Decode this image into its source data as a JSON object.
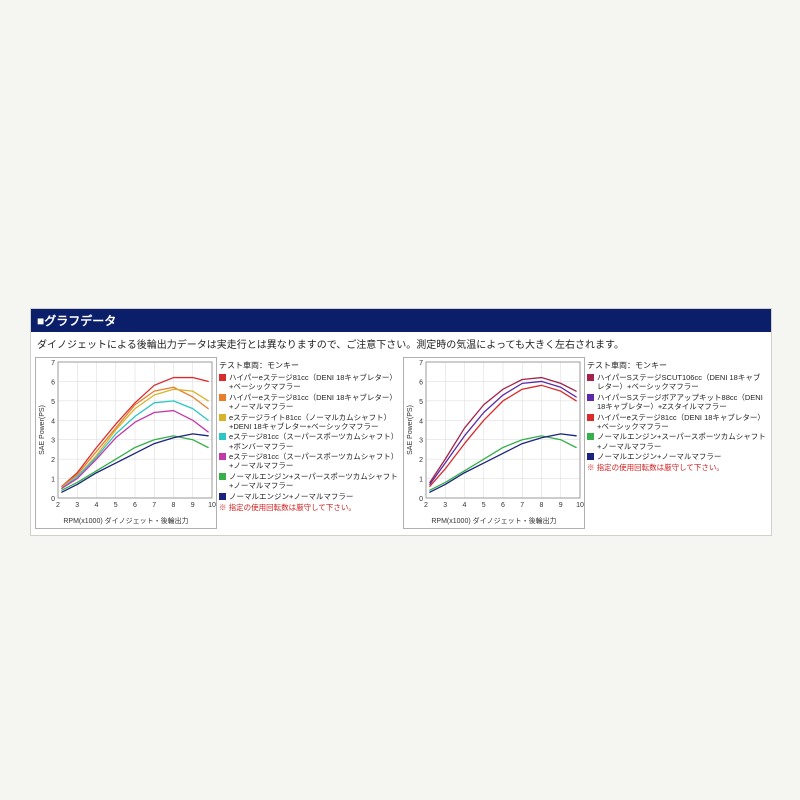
{
  "header": {
    "title": "■グラフデータ",
    "subtitle": "ダイノジェットによる後輪出力データは実走行とは異なりますので、ご注意下さい。測定時の気温によっても大きく左右されます。"
  },
  "charts": [
    {
      "type": "line",
      "background_color": "#ffffff",
      "grid_color": "#d8d8d8",
      "axis_color": "#888888",
      "xlim": [
        2,
        10
      ],
      "ylim": [
        0,
        7
      ],
      "xtick_step": 1,
      "ytick_step": 1,
      "x_label": "RPM(x1000) ダイノジェット・後輪出力",
      "y_label": "SAE Power(PS)",
      "title_fontsize": 7,
      "label_fontsize": 7,
      "line_width": 1.3,
      "legend_header": "テスト車両：モンキー",
      "legend_warn": "※ 指定の使用回転数は厳守して下さい。",
      "series": [
        {
          "color": "#d92b2b",
          "label": "ハイパーeステージ81cc（DENI 18キャブレター）+ベーシックマフラー",
          "x": [
            2.2,
            3,
            4,
            5,
            6,
            7,
            8,
            9,
            9.8
          ],
          "y": [
            0.6,
            1.3,
            2.6,
            3.8,
            4.9,
            5.8,
            6.2,
            6.2,
            6.0
          ]
        },
        {
          "color": "#e87e2a",
          "label": "ハイパーeステージ81cc（DENI 18キャブレター）+ノーマルマフラー",
          "x": [
            2.2,
            3,
            4,
            5,
            6,
            7,
            8,
            9,
            9.8
          ],
          "y": [
            0.6,
            1.2,
            2.4,
            3.6,
            4.8,
            5.5,
            5.7,
            5.2,
            4.6
          ]
        },
        {
          "color": "#d9b32b",
          "label": "eステージライト81cc（ノーマルカムシャフト）+DENI 18キャブレター+ベーシックマフラー",
          "x": [
            2.2,
            3,
            4,
            5,
            6,
            7,
            8,
            9,
            9.8
          ],
          "y": [
            0.5,
            1.1,
            2.2,
            3.5,
            4.6,
            5.3,
            5.6,
            5.5,
            5.0
          ]
        },
        {
          "color": "#2bc6c6",
          "label": "eステージ81cc（スーパースポーツカムシャフト）+ボンバーマフラー",
          "x": [
            2.2,
            3,
            4,
            5,
            6,
            7,
            8,
            9,
            9.8
          ],
          "y": [
            0.5,
            1.1,
            2.1,
            3.3,
            4.2,
            4.9,
            5.0,
            4.6,
            4.0
          ]
        },
        {
          "color": "#c23aa8",
          "label": "eステージ81cc（スーパースポーツカムシャフト）+ノーマルマフラー",
          "x": [
            2.2,
            3,
            4,
            5,
            6,
            7,
            8,
            9,
            9.8
          ],
          "y": [
            0.5,
            1.0,
            2.0,
            3.1,
            3.9,
            4.4,
            4.5,
            4.0,
            3.4
          ]
        },
        {
          "color": "#35b04a",
          "label": "ノーマルエンジン+スーパースポーツカムシャフト+ノーマルマフラー",
          "x": [
            2.2,
            3,
            4,
            5,
            6,
            7,
            8,
            9,
            9.8
          ],
          "y": [
            0.4,
            0.8,
            1.4,
            2.0,
            2.6,
            3.0,
            3.2,
            3.0,
            2.6
          ]
        },
        {
          "color": "#1a237e",
          "label": "ノーマルエンジン+ノーマルマフラー",
          "x": [
            2.2,
            3,
            4,
            5,
            6,
            7,
            8,
            9,
            9.8
          ],
          "y": [
            0.3,
            0.7,
            1.3,
            1.8,
            2.3,
            2.8,
            3.1,
            3.3,
            3.2
          ]
        }
      ]
    },
    {
      "type": "line",
      "background_color": "#ffffff",
      "grid_color": "#d8d8d8",
      "axis_color": "#888888",
      "xlim": [
        2,
        10
      ],
      "ylim": [
        0,
        7
      ],
      "xtick_step": 1,
      "ytick_step": 1,
      "x_label": "RPM(x1000) ダイノジェット・後輪出力",
      "y_label": "SAE Power(PS)",
      "title_fontsize": 7,
      "label_fontsize": 7,
      "line_width": 1.3,
      "legend_header": "テスト車両：モンキー",
      "legend_warn": "※ 指定の使用回転数は厳守して下さい。",
      "series": [
        {
          "color": "#a3234a",
          "label": "ハイパーSステージSCUT106cc（DENI 18キャブレター）+ベーシックマフラー",
          "x": [
            2.2,
            3,
            4,
            5,
            6,
            7,
            8,
            9,
            9.8
          ],
          "y": [
            0.8,
            2.0,
            3.6,
            4.8,
            5.6,
            6.1,
            6.2,
            5.9,
            5.5
          ]
        },
        {
          "color": "#5a2aa8",
          "label": "ハイパーSステージボアアップキット88cc（DENI 18キャブレター）+Zスタイルマフラー",
          "x": [
            2.2,
            3,
            4,
            5,
            6,
            7,
            8,
            9,
            9.8
          ],
          "y": [
            0.7,
            1.8,
            3.2,
            4.4,
            5.3,
            5.9,
            6.0,
            5.7,
            5.2
          ]
        },
        {
          "color": "#d92b2b",
          "label": "ハイパーeステージ81cc（DENI 18キャブレター）+ベーシックマフラー",
          "x": [
            2.2,
            3,
            4,
            5,
            6,
            7,
            8,
            9,
            9.8
          ],
          "y": [
            0.6,
            1.5,
            2.8,
            4.0,
            5.0,
            5.6,
            5.8,
            5.5,
            5.0
          ]
        },
        {
          "color": "#35b04a",
          "label": "ノーマルエンジン+スーパースポーツカムシャフト+ノーマルマフラー",
          "x": [
            2.2,
            3,
            4,
            5,
            6,
            7,
            8,
            9,
            9.8
          ],
          "y": [
            0.4,
            0.8,
            1.4,
            2.0,
            2.6,
            3.0,
            3.2,
            3.0,
            2.6
          ]
        },
        {
          "color": "#1a237e",
          "label": "ノーマルエンジン+ノーマルマフラー",
          "x": [
            2.2,
            3,
            4,
            5,
            6,
            7,
            8,
            9,
            9.8
          ],
          "y": [
            0.3,
            0.7,
            1.3,
            1.8,
            2.3,
            2.8,
            3.1,
            3.3,
            3.2
          ]
        }
      ]
    }
  ]
}
